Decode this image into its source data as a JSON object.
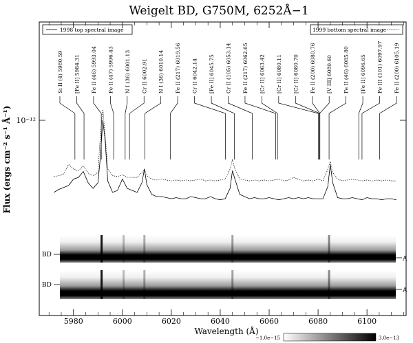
{
  "chart_data": {
    "type": "line",
    "title": "Weigelt BD, G750M, 6252Å−1",
    "xlabel": "Wavelength (Å)",
    "ylabel": "Flux (ergs cm⁻² s⁻¹ Å⁻¹)",
    "y_scale": "log",
    "xlim": [
      5966,
      6116
    ],
    "x_ticks": [
      5980,
      6000,
      6020,
      6040,
      6060,
      6080,
      6100
    ],
    "y_tick_label": "10⁻¹²",
    "y_tick_value": 1e-12,
    "ylim": [
      3e-13,
      1.6e-12
    ],
    "legend": [
      {
        "name": "1998 top spectral image",
        "style": "solid",
        "placement": "top-left"
      },
      {
        "name": "1999 bottom spectral image",
        "style": "dotted",
        "placement": "top-right"
      }
    ],
    "series": [
      {
        "name": "1998 top spectral image",
        "style": "solid",
        "x": [
          5972,
          5974,
          5976,
          5978,
          5980,
          5982,
          5984,
          5986,
          5988,
          5990,
          5991,
          5992,
          5993,
          5994,
          5996,
          5998,
          6000,
          6002,
          6004,
          6006,
          6008,
          6009,
          6010,
          6012,
          6014,
          6016,
          6018,
          6020,
          6022,
          6024,
          6026,
          6028,
          6030,
          6032,
          6034,
          6036,
          6038,
          6040,
          6042,
          6044,
          6045,
          6046,
          6048,
          6050,
          6052,
          6054,
          6056,
          6058,
          6060,
          6062,
          6064,
          6066,
          6068,
          6070,
          6072,
          6074,
          6076,
          6078,
          6080,
          6082,
          6084,
          6085,
          6086,
          6088,
          6090,
          6092,
          6094,
          6096,
          6098,
          6100,
          6102,
          6104,
          6106,
          6108,
          6110,
          6112
        ],
        "y": [
          4.7e-13,
          4.85e-13,
          4.95e-13,
          5.05e-13,
          5.4e-13,
          5.5e-13,
          5.85e-13,
          5.2e-13,
          4.9e-13,
          5.2e-13,
          6.8e-13,
          1e-12,
          8e-13,
          5.3e-13,
          4.7e-13,
          4.8e-13,
          5.4e-13,
          4.9e-13,
          4.8e-13,
          4.7e-13,
          5.2e-13,
          6e-13,
          5.1e-13,
          4.6e-13,
          4.5e-13,
          4.5e-13,
          4.45e-13,
          4.4e-13,
          4.45e-13,
          4.4e-13,
          4.4e-13,
          4.5e-13,
          4.45e-13,
          4.4e-13,
          4.4e-13,
          4.5e-13,
          4.4e-13,
          4.35e-13,
          4.4e-13,
          4.9e-13,
          5.9e-13,
          5.4e-13,
          4.6e-13,
          4.5e-13,
          4.4e-13,
          4.45e-13,
          4.4e-13,
          4.4e-13,
          4.45e-13,
          4.4e-13,
          4.35e-13,
          4.4e-13,
          4.45e-13,
          4.4e-13,
          4.45e-13,
          4.4e-13,
          4.45e-13,
          4.4e-13,
          4.4e-13,
          4.4e-13,
          5e-13,
          6.3e-13,
          5.2e-13,
          4.45e-13,
          4.4e-13,
          4.4e-13,
          4.45e-13,
          4.4e-13,
          4.35e-13,
          4.45e-13,
          4.4e-13,
          4.4e-13,
          4.35e-13,
          4.4e-13,
          4.4e-13,
          4.35e-13
        ]
      },
      {
        "name": "1999 bottom spectral image",
        "style": "dotted",
        "x": [
          5972,
          5974,
          5976,
          5978,
          5980,
          5982,
          5984,
          5986,
          5988,
          5990,
          5991,
          5992,
          5993,
          5994,
          5996,
          5998,
          6000,
          6002,
          6004,
          6006,
          6008,
          6009,
          6010,
          6012,
          6014,
          6016,
          6018,
          6020,
          6022,
          6024,
          6026,
          6028,
          6030,
          6032,
          6034,
          6036,
          6038,
          6040,
          6042,
          6044,
          6045,
          6046,
          6048,
          6050,
          6052,
          6054,
          6056,
          6058,
          6060,
          6062,
          6064,
          6066,
          6068,
          6070,
          6072,
          6074,
          6076,
          6078,
          6080,
          6082,
          6084,
          6085,
          6086,
          6088,
          6090,
          6092,
          6094,
          6096,
          6098,
          6100,
          6102,
          6104,
          6106,
          6108,
          6110,
          6112
        ],
        "y": [
          5.55e-13,
          5.6e-13,
          5.7e-13,
          6.3e-13,
          6e-13,
          5.9e-13,
          6.2e-13,
          5.75e-13,
          5.6e-13,
          5.8e-13,
          8.5e-13,
          1.12e-12,
          8.5e-13,
          6e-13,
          5.6e-13,
          5.55e-13,
          5.65e-13,
          5.5e-13,
          5.5e-13,
          5.5e-13,
          5.8e-13,
          6e-13,
          5.6e-13,
          5.4e-13,
          5.35e-13,
          5.4e-13,
          5.35e-13,
          5.3e-13,
          5.35e-13,
          5.3e-13,
          5.35e-13,
          5.3e-13,
          5.35e-13,
          5.4e-13,
          5.3e-13,
          5.35e-13,
          5.3e-13,
          5.35e-13,
          5.4e-13,
          6e-13,
          6.6e-13,
          6e-13,
          5.4e-13,
          5.35e-13,
          5.3e-13,
          5.35e-13,
          5.3e-13,
          5.35e-13,
          5.3e-13,
          5.35e-13,
          5.4e-13,
          5.3e-13,
          5.35e-13,
          5.5e-13,
          5.4e-13,
          5.3e-13,
          5.35e-13,
          5.3e-13,
          5.4e-13,
          5.3e-13,
          6e-13,
          6.5e-13,
          5.8e-13,
          5.4e-13,
          5.3e-13,
          5.35e-13,
          5.4e-13,
          5.35e-13,
          5.3e-13,
          5.35e-13,
          5.3e-13,
          5.35e-13,
          5.3e-13,
          5.35e-13,
          5.3e-13,
          5.3e-13
        ]
      }
    ],
    "annotations": [
      {
        "label": "Si II (4) 5980.59",
        "x": 5980.59
      },
      {
        "label": "[Fe II] 5984.31",
        "x": 5984.31
      },
      {
        "label": "Fe II (46) 5993.04",
        "x": 5991.37
      },
      {
        "label": "Fe II (47) 5996.43",
        "x": 5996.43
      },
      {
        "label": "N I (36) 6001.13",
        "x": 6001.13
      },
      {
        "label": "Cr II 6002.91",
        "x": 6002.91
      },
      {
        "label": "N I (36) 6010.14",
        "x": 6009.2
      },
      {
        "label": "Fe II (217) 6019.56",
        "x": 6019.56
      },
      {
        "label": "Cr II 6042.14",
        "x": 6042.14
      },
      {
        "label": "[Fe II] 6045.75",
        "x": 6045.75
      },
      {
        "label": "Cr II (105) 6053.14",
        "x": 6053.14
      },
      {
        "label": "Fe II (217) 6062.65",
        "x": 6062.65
      },
      {
        "label": "[Cr II] 6063.42",
        "x": 6063.42
      },
      {
        "label": "[Cr II] 6080.11",
        "x": 6080.11
      },
      {
        "label": "[Cr II] 6080.70",
        "x": 6080.7
      },
      {
        "label": "Fe II (200) 6080.76",
        "x": 6080.76
      },
      {
        "label": "[V III] 6080.60",
        "x": 6080.6
      },
      {
        "label": "Fe II (46) 6085.80",
        "x": 6084.5
      },
      {
        "label": "[Fe II] 6096.65",
        "x": 6096.65
      },
      {
        "label": "Fe III (101) 6097.97",
        "x": 6097.97
      },
      {
        "label": "Fe II (200) 6105.19",
        "x": 6105.19
      }
    ],
    "spectral_images": [
      {
        "left_label": "BD",
        "right_label": "A"
      },
      {
        "left_label": "BD",
        "right_label": "A"
      }
    ],
    "colorbar": {
      "min_label": "−1.0e−15",
      "max_label": "3.0e−13",
      "min": -1e-15,
      "max": 3e-13
    },
    "grid": false
  }
}
